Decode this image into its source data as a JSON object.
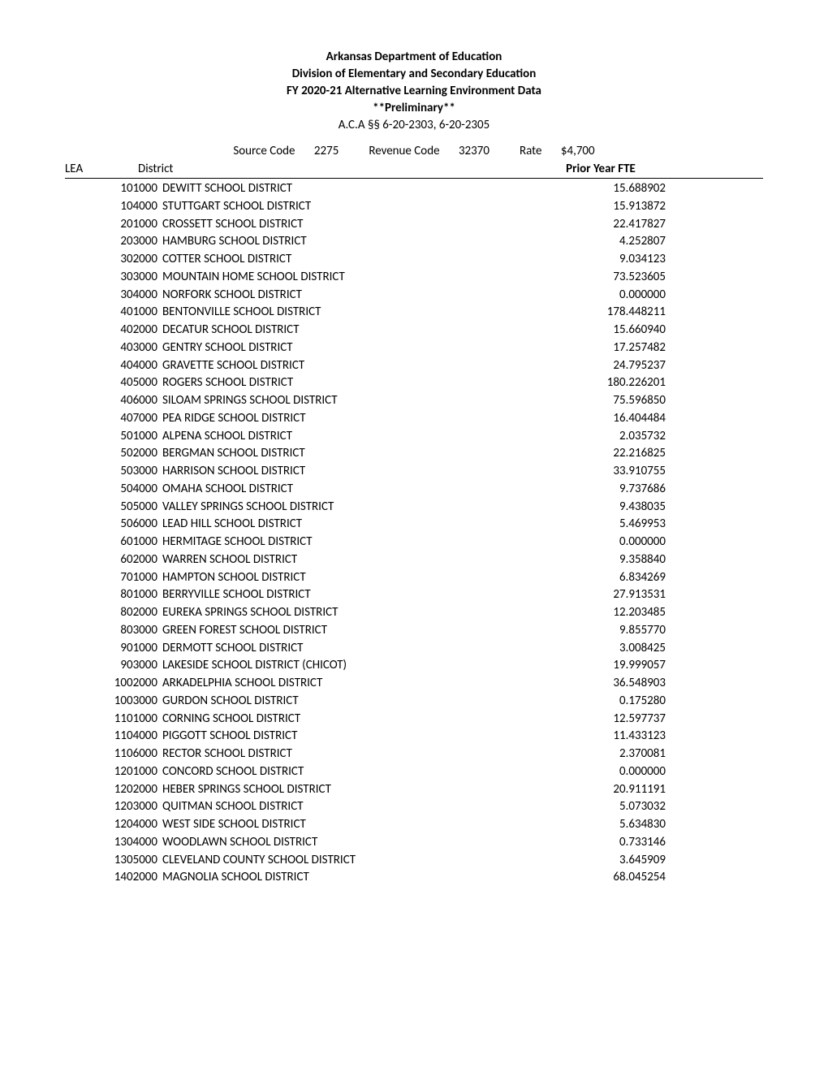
{
  "header": {
    "line1": "Arkansas Department of Education",
    "line2": "Division of Elementary and Secondary Education",
    "line3": "FY 2020-21 Alternative Learning Environment Data",
    "line4": "**Preliminary**",
    "line5": "A.C.A §§ 6-20-2303, 6-20-2305"
  },
  "source": {
    "source_code_label": "Source Code",
    "source_code": "2275",
    "revenue_code_label": "Revenue Code",
    "revenue_code": "32370",
    "rate_label": "Rate",
    "rate": "$4,700"
  },
  "columns": {
    "lea": "LEA",
    "district": "District",
    "fte": "Prior Year FTE"
  },
  "rows": [
    {
      "lea": "101000",
      "district": "DEWITT SCHOOL DISTRICT",
      "fte": "15.688902"
    },
    {
      "lea": "104000",
      "district": "STUTTGART SCHOOL DISTRICT",
      "fte": "15.913872"
    },
    {
      "lea": "201000",
      "district": "CROSSETT SCHOOL DISTRICT",
      "fte": "22.417827"
    },
    {
      "lea": "203000",
      "district": "HAMBURG SCHOOL DISTRICT",
      "fte": "4.252807"
    },
    {
      "lea": "302000",
      "district": "COTTER SCHOOL DISTRICT",
      "fte": "9.034123"
    },
    {
      "lea": "303000",
      "district": "MOUNTAIN HOME SCHOOL DISTRICT",
      "fte": "73.523605"
    },
    {
      "lea": "304000",
      "district": "NORFORK SCHOOL DISTRICT",
      "fte": "0.000000"
    },
    {
      "lea": "401000",
      "district": "BENTONVILLE SCHOOL DISTRICT",
      "fte": "178.448211"
    },
    {
      "lea": "402000",
      "district": "DECATUR SCHOOL DISTRICT",
      "fte": "15.660940"
    },
    {
      "lea": "403000",
      "district": "GENTRY SCHOOL DISTRICT",
      "fte": "17.257482"
    },
    {
      "lea": "404000",
      "district": "GRAVETTE SCHOOL DISTRICT",
      "fte": "24.795237"
    },
    {
      "lea": "405000",
      "district": "ROGERS SCHOOL DISTRICT",
      "fte": "180.226201"
    },
    {
      "lea": "406000",
      "district": "SILOAM SPRINGS SCHOOL DISTRICT",
      "fte": "75.596850"
    },
    {
      "lea": "407000",
      "district": "PEA RIDGE SCHOOL DISTRICT",
      "fte": "16.404484"
    },
    {
      "lea": "501000",
      "district": "ALPENA SCHOOL DISTRICT",
      "fte": "2.035732"
    },
    {
      "lea": "502000",
      "district": "BERGMAN SCHOOL DISTRICT",
      "fte": "22.216825"
    },
    {
      "lea": "503000",
      "district": "HARRISON SCHOOL DISTRICT",
      "fte": "33.910755"
    },
    {
      "lea": "504000",
      "district": "OMAHA SCHOOL DISTRICT",
      "fte": "9.737686"
    },
    {
      "lea": "505000",
      "district": "VALLEY SPRINGS SCHOOL DISTRICT",
      "fte": "9.438035"
    },
    {
      "lea": "506000",
      "district": "LEAD HILL SCHOOL DISTRICT",
      "fte": "5.469953"
    },
    {
      "lea": "601000",
      "district": "HERMITAGE SCHOOL DISTRICT",
      "fte": "0.000000"
    },
    {
      "lea": "602000",
      "district": "WARREN SCHOOL DISTRICT",
      "fte": "9.358840"
    },
    {
      "lea": "701000",
      "district": "HAMPTON SCHOOL DISTRICT",
      "fte": "6.834269"
    },
    {
      "lea": "801000",
      "district": "BERRYVILLE SCHOOL DISTRICT",
      "fte": "27.913531"
    },
    {
      "lea": "802000",
      "district": "EUREKA SPRINGS SCHOOL DISTRICT",
      "fte": "12.203485"
    },
    {
      "lea": "803000",
      "district": "GREEN FOREST SCHOOL DISTRICT",
      "fte": "9.855770"
    },
    {
      "lea": "901000",
      "district": "DERMOTT SCHOOL DISTRICT",
      "fte": "3.008425"
    },
    {
      "lea": "903000",
      "district": "LAKESIDE SCHOOL DISTRICT (CHICOT)",
      "fte": "19.999057"
    },
    {
      "lea": "1002000",
      "district": "ARKADELPHIA SCHOOL DISTRICT",
      "fte": "36.548903"
    },
    {
      "lea": "1003000",
      "district": "GURDON SCHOOL DISTRICT",
      "fte": "0.175280"
    },
    {
      "lea": "1101000",
      "district": "CORNING SCHOOL DISTRICT",
      "fte": "12.597737"
    },
    {
      "lea": "1104000",
      "district": "PIGGOTT SCHOOL DISTRICT",
      "fte": "11.433123"
    },
    {
      "lea": "1106000",
      "district": "RECTOR SCHOOL DISTRICT",
      "fte": "2.370081"
    },
    {
      "lea": "1201000",
      "district": "CONCORD SCHOOL DISTRICT",
      "fte": "0.000000"
    },
    {
      "lea": "1202000",
      "district": "HEBER SPRINGS SCHOOL DISTRICT",
      "fte": "20.911191"
    },
    {
      "lea": "1203000",
      "district": "QUITMAN SCHOOL DISTRICT",
      "fte": "5.073032"
    },
    {
      "lea": "1204000",
      "district": "WEST SIDE SCHOOL DISTRICT",
      "fte": "5.634830"
    },
    {
      "lea": "1304000",
      "district": "WOODLAWN SCHOOL DISTRICT",
      "fte": "0.733146"
    },
    {
      "lea": "1305000",
      "district": "CLEVELAND COUNTY SCHOOL DISTRICT",
      "fte": "3.645909"
    },
    {
      "lea": "1402000",
      "district": "MAGNOLIA SCHOOL DISTRICT",
      "fte": "68.045254"
    }
  ]
}
